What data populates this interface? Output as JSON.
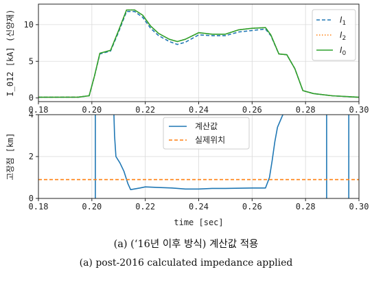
{
  "chart_data": [
    {
      "type": "line",
      "ylabel": "I_012 [kA] (신양재)",
      "xlim": [
        0.18,
        0.3
      ],
      "ylim": [
        -0.5,
        12.8
      ],
      "xticks": [
        "0.18",
        "0.20",
        "0.22",
        "0.24",
        "0.26",
        "0.28",
        "0.30"
      ],
      "yticks": [
        "0",
        "5",
        "10"
      ],
      "ytick_values": [
        0,
        5,
        10
      ],
      "grid": true,
      "legend_position": "top-right",
      "series": [
        {
          "name": "I1",
          "legend_main": "I",
          "legend_sub": "1",
          "style": "dashed",
          "color": "#1f77b4",
          "points": [
            [
              0.18,
              0.1
            ],
            [
              0.195,
              0.12
            ],
            [
              0.199,
              0.3
            ],
            [
              0.201,
              3.0
            ],
            [
              0.203,
              6.0
            ],
            [
              0.207,
              6.4
            ],
            [
              0.21,
              9.0
            ],
            [
              0.213,
              11.8
            ],
            [
              0.216,
              11.8
            ],
            [
              0.219,
              11.0
            ],
            [
              0.222,
              9.5
            ],
            [
              0.225,
              8.5
            ],
            [
              0.229,
              7.7
            ],
            [
              0.232,
              7.3
            ],
            [
              0.235,
              7.6
            ],
            [
              0.24,
              8.6
            ],
            [
              0.245,
              8.5
            ],
            [
              0.25,
              8.5
            ],
            [
              0.255,
              9.0
            ],
            [
              0.26,
              9.2
            ],
            [
              0.265,
              9.4
            ],
            [
              0.267,
              8.5
            ],
            [
              0.27,
              6.0
            ],
            [
              0.273,
              5.9
            ],
            [
              0.276,
              4.0
            ],
            [
              0.279,
              1.0
            ],
            [
              0.283,
              0.6
            ],
            [
              0.29,
              0.3
            ],
            [
              0.3,
              0.1
            ]
          ]
        },
        {
          "name": "I2",
          "legend_main": "I",
          "legend_sub": "2",
          "style": "dotted",
          "color": "#ff7f0e",
          "points": [
            [
              0.18,
              0.1
            ],
            [
              0.195,
              0.12
            ],
            [
              0.199,
              0.3
            ],
            [
              0.201,
              3.0
            ],
            [
              0.203,
              6.1
            ],
            [
              0.207,
              6.5
            ],
            [
              0.21,
              9.2
            ],
            [
              0.213,
              12.0
            ],
            [
              0.216,
              12.0
            ],
            [
              0.219,
              11.3
            ],
            [
              0.222,
              9.8
            ],
            [
              0.225,
              8.8
            ],
            [
              0.229,
              8.0
            ],
            [
              0.232,
              7.7
            ],
            [
              0.235,
              8.0
            ],
            [
              0.24,
              8.9
            ],
            [
              0.245,
              8.7
            ],
            [
              0.25,
              8.7
            ],
            [
              0.255,
              9.3
            ],
            [
              0.26,
              9.5
            ],
            [
              0.265,
              9.6
            ],
            [
              0.267,
              8.6
            ],
            [
              0.27,
              6.0
            ],
            [
              0.273,
              5.9
            ],
            [
              0.276,
              4.0
            ],
            [
              0.279,
              1.0
            ],
            [
              0.283,
              0.6
            ],
            [
              0.29,
              0.3
            ],
            [
              0.3,
              0.1
            ]
          ]
        },
        {
          "name": "I0",
          "legend_main": "I",
          "legend_sub": "0",
          "style": "solid",
          "color": "#2ca02c",
          "points": [
            [
              0.18,
              0.1
            ],
            [
              0.195,
              0.12
            ],
            [
              0.199,
              0.3
            ],
            [
              0.201,
              3.0
            ],
            [
              0.203,
              6.1
            ],
            [
              0.207,
              6.5
            ],
            [
              0.21,
              9.2
            ],
            [
              0.213,
              12.0
            ],
            [
              0.216,
              12.0
            ],
            [
              0.219,
              11.3
            ],
            [
              0.222,
              9.8
            ],
            [
              0.225,
              8.8
            ],
            [
              0.229,
              8.0
            ],
            [
              0.232,
              7.7
            ],
            [
              0.235,
              8.0
            ],
            [
              0.24,
              8.9
            ],
            [
              0.245,
              8.7
            ],
            [
              0.25,
              8.7
            ],
            [
              0.255,
              9.3
            ],
            [
              0.26,
              9.5
            ],
            [
              0.265,
              9.6
            ],
            [
              0.267,
              8.6
            ],
            [
              0.27,
              6.0
            ],
            [
              0.273,
              5.9
            ],
            [
              0.276,
              4.0
            ],
            [
              0.279,
              1.0
            ],
            [
              0.283,
              0.6
            ],
            [
              0.29,
              0.3
            ],
            [
              0.3,
              0.1
            ]
          ]
        }
      ]
    },
    {
      "type": "line",
      "xlabel": "time [sec]",
      "ylabel": "고장점 [km]",
      "xlim": [
        0.18,
        0.3
      ],
      "ylim": [
        0,
        4
      ],
      "xticks": [
        "0.18",
        "0.20",
        "0.22",
        "0.24",
        "0.26",
        "0.28",
        "0.30"
      ],
      "yticks": [
        "0",
        "2",
        "4"
      ],
      "ytick_values": [
        0,
        2,
        4
      ],
      "grid": true,
      "legend_position": "top-center",
      "series": [
        {
          "name": "계산값",
          "style": "solid",
          "color": "#1f77b4",
          "segments": [
            [
              [
                0.2013,
                -0.2
              ],
              [
                0.2013,
                4.3
              ]
            ],
            [
              [
                0.2082,
                4.3
              ],
              [
                0.2085,
                3.0
              ],
              [
                0.209,
                2.0
              ],
              [
                0.2105,
                1.7
              ],
              [
                0.212,
                1.3
              ],
              [
                0.2135,
                0.7
              ],
              [
                0.2145,
                0.42
              ],
              [
                0.218,
                0.5
              ],
              [
                0.22,
                0.55
              ],
              [
                0.225,
                0.52
              ],
              [
                0.23,
                0.5
              ],
              [
                0.235,
                0.45
              ],
              [
                0.24,
                0.45
              ],
              [
                0.245,
                0.48
              ],
              [
                0.25,
                0.48
              ],
              [
                0.26,
                0.5
              ],
              [
                0.265,
                0.5
              ],
              [
                0.2665,
                1.0
              ],
              [
                0.2675,
                1.8
              ],
              [
                0.2685,
                2.7
              ],
              [
                0.2695,
                3.4
              ],
              [
                0.2715,
                4.0
              ],
              [
                0.2725,
                4.3
              ]
            ],
            [
              [
                0.2879,
                -0.2
              ],
              [
                0.2879,
                4.3
              ]
            ],
            [
              [
                0.2962,
                -0.2
              ],
              [
                0.2962,
                4.3
              ]
            ]
          ]
        },
        {
          "name": "실제위치",
          "style": "dashed",
          "color": "#ff7f0e",
          "segments": [
            [
              [
                0.18,
                0.9
              ],
              [
                0.3,
                0.9
              ]
            ]
          ]
        }
      ]
    }
  ],
  "caption": {
    "line1": "(a) (‘16년 이후 방식) 계산값 적용",
    "line2": "(a) post-2016 calculated impedance applied"
  }
}
